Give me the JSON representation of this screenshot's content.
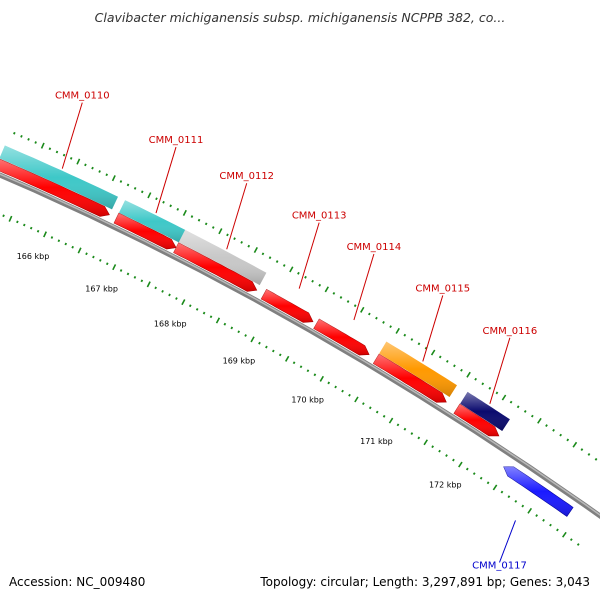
{
  "title": "Clavibacter michiganensis subsp. michiganensis NCPPB 382, co...",
  "footer": {
    "accession": "Accession: NC_009480",
    "summary": "Topology: circular; Length: 3,297,891 bp; Genes: 3,043"
  },
  "colors": {
    "forward_cds": "#ff0000",
    "reverse_cds": "#1a1aff",
    "backbone": "#808080",
    "tick": "#1a8a1a",
    "label_forward": "#cc0000",
    "label_reverse": "#0000cc"
  },
  "genes": [
    {
      "id": "CMM_0110",
      "strand": "+",
      "start_kbp": 165.05,
      "end_kbp": 166.65,
      "feature_color": "#3ec8c8"
    },
    {
      "id": "CMM_0111",
      "strand": "+",
      "start_kbp": 166.75,
      "end_kbp": 167.6,
      "feature_color": "#3ec8c8"
    },
    {
      "id": "CMM_0112",
      "strand": "+",
      "start_kbp": 167.6,
      "end_kbp": 168.75,
      "feature_color": "#c8c8c8"
    },
    {
      "id": "CMM_0113",
      "strand": "+",
      "start_kbp": 168.85,
      "end_kbp": 169.55,
      "feature_color": null
    },
    {
      "id": "CMM_0114",
      "strand": "+",
      "start_kbp": 169.6,
      "end_kbp": 170.35,
      "feature_color": null
    },
    {
      "id": "CMM_0115",
      "strand": "+",
      "start_kbp": 170.45,
      "end_kbp": 171.45,
      "feature_color": "#ff9900"
    },
    {
      "id": "CMM_0116",
      "strand": "+",
      "start_kbp": 171.6,
      "end_kbp": 172.2,
      "feature_color": "#0a0a6e"
    },
    {
      "id": "CMM_0117",
      "strand": "-",
      "start_kbp": 172.45,
      "end_kbp": 173.4,
      "feature_color": null
    }
  ],
  "kbp_ticks": [
    {
      "kbp": 166,
      "label": "166 kbp"
    },
    {
      "kbp": 167,
      "label": "167 kbp"
    },
    {
      "kbp": 168,
      "label": "168 kbp"
    },
    {
      "kbp": 169,
      "label": "169 kbp"
    },
    {
      "kbp": 170,
      "label": "170 kbp"
    },
    {
      "kbp": 171,
      "label": "171 kbp"
    },
    {
      "kbp": 172,
      "label": "172 kbp"
    }
  ]
}
